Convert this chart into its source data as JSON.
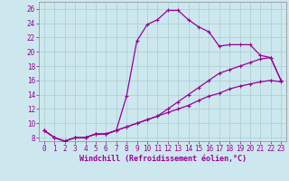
{
  "xlabel": "Windchill (Refroidissement éolien,°C)",
  "background_color": "#cce8ee",
  "grid_color": "#aacccc",
  "line_color": "#990099",
  "spine_color": "#888888",
  "x_ticks": [
    0,
    1,
    2,
    3,
    4,
    5,
    6,
    7,
    8,
    9,
    10,
    11,
    12,
    13,
    14,
    15,
    16,
    17,
    18,
    19,
    20,
    21,
    22,
    23
  ],
  "y_ticks": [
    8,
    10,
    12,
    14,
    16,
    18,
    20,
    22,
    24,
    26
  ],
  "xlim": [
    -0.5,
    23.5
  ],
  "ylim": [
    7.5,
    27.0
  ],
  "line1_x": [
    0,
    1,
    2,
    3,
    4,
    5,
    6,
    7,
    8,
    9,
    10,
    11,
    12,
    13,
    14,
    15,
    16,
    17,
    18,
    19,
    20,
    21,
    22,
    23
  ],
  "line1_y": [
    9.0,
    8.0,
    7.5,
    8.0,
    8.0,
    8.5,
    8.5,
    9.0,
    13.8,
    21.5,
    23.8,
    24.5,
    25.8,
    25.8,
    24.5,
    23.5,
    22.8,
    20.8,
    21.0,
    21.0,
    21.0,
    19.5,
    19.2,
    16.0
  ],
  "line2_x": [
    0,
    1,
    2,
    3,
    4,
    5,
    6,
    7,
    8,
    9,
    10,
    11,
    12,
    13,
    14,
    15,
    16,
    17,
    18,
    19,
    20,
    21,
    22,
    23
  ],
  "line2_y": [
    9.0,
    8.0,
    7.5,
    8.0,
    8.0,
    8.5,
    8.5,
    9.0,
    9.5,
    10.0,
    10.5,
    11.0,
    12.0,
    13.0,
    14.0,
    15.0,
    16.0,
    17.0,
    17.5,
    18.0,
    18.5,
    19.0,
    19.2,
    16.0
  ],
  "line3_x": [
    0,
    1,
    2,
    3,
    4,
    5,
    6,
    7,
    8,
    9,
    10,
    11,
    12,
    13,
    14,
    15,
    16,
    17,
    18,
    19,
    20,
    21,
    22,
    23
  ],
  "line3_y": [
    9.0,
    8.0,
    7.5,
    8.0,
    8.0,
    8.5,
    8.5,
    9.0,
    9.5,
    10.0,
    10.5,
    11.0,
    11.5,
    12.0,
    12.5,
    13.2,
    13.8,
    14.2,
    14.8,
    15.2,
    15.5,
    15.8,
    16.0,
    15.8
  ],
  "tick_fontsize": 5.5,
  "xlabel_fontsize": 6.0,
  "marker_size": 3.0,
  "line_width": 0.9
}
